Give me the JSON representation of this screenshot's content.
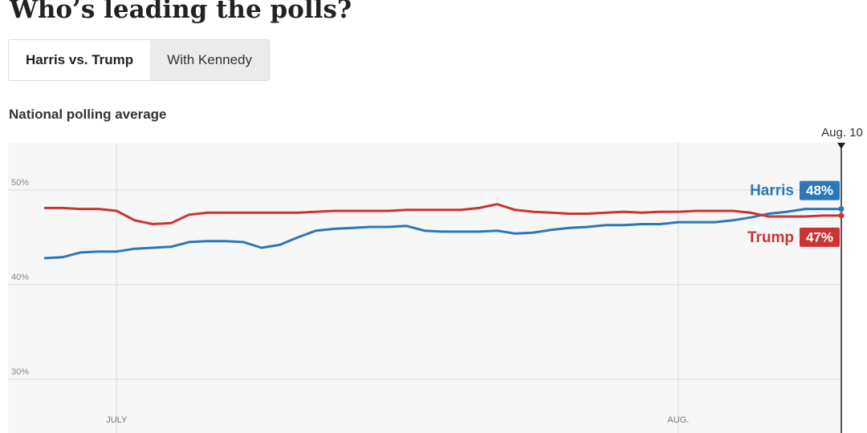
{
  "header": {
    "title": "Who’s leading the polls?",
    "tabs": [
      "Harris vs. Trump",
      "With Kennedy"
    ],
    "active_tab": 0
  },
  "chart_data": {
    "type": "line",
    "title": "National polling average",
    "categories": [
      null,
      null,
      null,
      null,
      "JULY",
      null,
      null,
      null,
      null,
      null,
      null,
      null,
      null,
      null,
      null,
      null,
      null,
      null,
      null,
      null,
      null,
      null,
      null,
      null,
      null,
      null,
      null,
      null,
      null,
      null,
      null,
      null,
      null,
      null,
      null,
      "AUG.",
      null,
      null,
      null,
      null,
      null,
      null,
      null,
      null,
      "Aug. 10"
    ],
    "series": [
      {
        "name": "Harris",
        "color": "#2a78b8",
        "values": [
          42.8,
          42.9,
          43.4,
          43.5,
          43.5,
          43.8,
          43.9,
          44.0,
          44.5,
          44.6,
          44.6,
          44.5,
          43.9,
          44.2,
          45.0,
          45.7,
          45.9,
          46.0,
          46.1,
          46.1,
          46.2,
          45.7,
          45.6,
          45.6,
          45.6,
          45.7,
          45.4,
          45.5,
          45.8,
          46.0,
          46.1,
          46.3,
          46.3,
          46.4,
          46.4,
          46.6,
          46.6,
          46.6,
          46.8,
          47.1,
          47.5,
          47.7,
          48.0,
          48.0,
          48.0
        ],
        "value_labels": [
          null,
          null,
          null,
          null,
          null,
          null,
          null,
          null,
          null,
          null,
          null,
          null,
          null,
          null,
          null,
          null,
          null,
          null,
          null,
          null,
          null,
          null,
          null,
          null,
          null,
          null,
          null,
          null,
          null,
          null,
          null,
          null,
          null,
          null,
          null,
          null,
          null,
          null,
          null,
          null,
          null,
          null,
          null,
          null,
          "48%"
        ]
      },
      {
        "name": "Trump",
        "color": "#cc3333",
        "values": [
          48.1,
          48.1,
          48.0,
          48.0,
          47.8,
          46.8,
          46.4,
          46.5,
          47.4,
          47.6,
          47.6,
          47.6,
          47.6,
          47.6,
          47.6,
          47.7,
          47.8,
          47.8,
          47.8,
          47.8,
          47.9,
          47.9,
          47.9,
          47.9,
          48.1,
          48.5,
          47.9,
          47.7,
          47.6,
          47.5,
          47.5,
          47.6,
          47.7,
          47.6,
          47.7,
          47.7,
          47.8,
          47.8,
          47.8,
          47.6,
          47.2,
          47.2,
          47.2,
          47.3,
          47.3
        ],
        "value_labels": [
          null,
          null,
          null,
          null,
          null,
          null,
          null,
          null,
          null,
          null,
          null,
          null,
          null,
          null,
          null,
          null,
          null,
          null,
          null,
          null,
          null,
          null,
          null,
          null,
          null,
          null,
          null,
          null,
          null,
          null,
          null,
          null,
          null,
          null,
          null,
          null,
          null,
          null,
          null,
          null,
          null,
          null,
          null,
          null,
          "47%"
        ]
      }
    ],
    "ylim": [
      25,
      55
    ],
    "yticks": [
      {
        "value": 30,
        "label": "30%"
      },
      {
        "value": 40,
        "label": "40%"
      },
      {
        "value": 50,
        "label": "50%"
      }
    ],
    "grid": true
  }
}
